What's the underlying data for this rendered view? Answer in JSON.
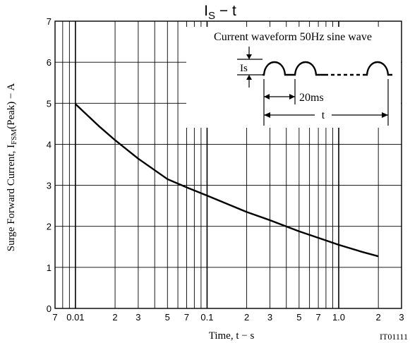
{
  "chart_data": {
    "type": "line",
    "title": {
      "main": "I",
      "sub": "S",
      "rest": " − t"
    },
    "xlabel": "Time, t  −  s",
    "ylabel": {
      "prefix": "Surge Forward Current, I",
      "sub": "FSM",
      "suffix": "(Peak)  −  A"
    },
    "x_scale": "log",
    "xlim": [
      0.007,
      3
    ],
    "ylim": [
      0,
      7
    ],
    "grid": true,
    "x_tick_labels": [
      {
        "x": 0.007,
        "label": "7"
      },
      {
        "x": 0.01,
        "label": "0.01"
      },
      {
        "x": 0.02,
        "label": "2"
      },
      {
        "x": 0.03,
        "label": "3"
      },
      {
        "x": 0.05,
        "label": "5"
      },
      {
        "x": 0.07,
        "label": "7"
      },
      {
        "x": 0.1,
        "label": "0.1"
      },
      {
        "x": 0.2,
        "label": "2"
      },
      {
        "x": 0.3,
        "label": "3"
      },
      {
        "x": 0.5,
        "label": "5"
      },
      {
        "x": 0.7,
        "label": "7"
      },
      {
        "x": 1.0,
        "label": "1.0"
      },
      {
        "x": 2.0,
        "label": "2"
      },
      {
        "x": 3.0,
        "label": "3"
      }
    ],
    "y_ticks": [
      0,
      1,
      2,
      3,
      4,
      5,
      6,
      7
    ],
    "series": [
      {
        "x": [
          0.01,
          0.015,
          0.02,
          0.03,
          0.05,
          0.07,
          0.1,
          0.2,
          0.3,
          0.5,
          0.7,
          1.0,
          1.5,
          2.0
        ],
        "y": [
          4.98,
          4.45,
          4.1,
          3.65,
          3.15,
          2.95,
          2.75,
          2.35,
          2.15,
          1.88,
          1.72,
          1.55,
          1.38,
          1.27
        ]
      }
    ],
    "inset": {
      "title": "Current waveform 50Hz sine wave",
      "is_label": "Is",
      "period_label": "20ms",
      "t_label": "t"
    },
    "code": "IT01111"
  }
}
